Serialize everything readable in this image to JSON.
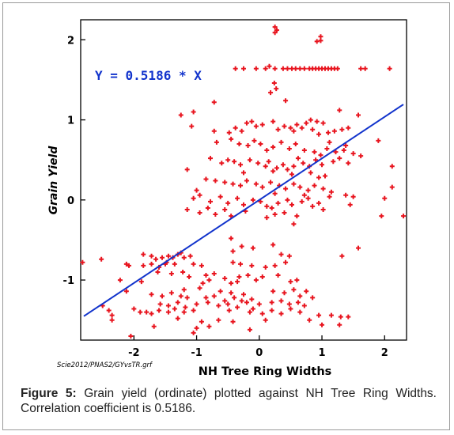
{
  "chart_data": {
    "type": "scatter",
    "xlabel": "NH Tree Ring Widths",
    "ylabel": "Grain Yield",
    "xlim": [
      -2.85,
      2.35
    ],
    "ylim": [
      -1.75,
      2.25
    ],
    "x_ticks": [
      -2,
      -1,
      0,
      1,
      2
    ],
    "y_ticks": [
      -1,
      0,
      1,
      2
    ],
    "x_tick_labels": [
      "-2",
      "-1",
      "0",
      "1",
      "2"
    ],
    "y_tick_labels": [
      "-1",
      "0",
      "1",
      "2"
    ],
    "equation_label": "Y = 0.5186 * X",
    "source_label": "Scie2012/PNAS2/GYvsTR.grf",
    "fit_line": {
      "slope": 0.5186,
      "intercept": 0,
      "x_range": [
        -2.8,
        2.3
      ]
    },
    "grid": false,
    "colors": {
      "points": "#e8141e",
      "fit_line": "#1133cc",
      "equation": "#1133cc",
      "axes": "#000000"
    },
    "points": [
      [
        0.25,
        2.16
      ],
      [
        0.25,
        2.09
      ],
      [
        0.28,
        2.12
      ],
      [
        0.98,
        2.04
      ],
      [
        0.92,
        1.98
      ],
      [
        0.98,
        1.99
      ],
      [
        -0.38,
        1.64
      ],
      [
        -0.25,
        1.64
      ],
      [
        -0.05,
        1.64
      ],
      [
        0.1,
        1.64
      ],
      [
        0.16,
        1.67
      ],
      [
        0.25,
        1.64
      ],
      [
        0.38,
        1.64
      ],
      [
        0.45,
        1.64
      ],
      [
        0.52,
        1.64
      ],
      [
        0.58,
        1.64
      ],
      [
        0.65,
        1.64
      ],
      [
        0.72,
        1.64
      ],
      [
        0.8,
        1.64
      ],
      [
        0.85,
        1.64
      ],
      [
        0.9,
        1.64
      ],
      [
        0.95,
        1.64
      ],
      [
        1.0,
        1.64
      ],
      [
        1.05,
        1.64
      ],
      [
        1.1,
        1.64
      ],
      [
        1.15,
        1.64
      ],
      [
        1.2,
        1.64
      ],
      [
        1.25,
        1.64
      ],
      [
        1.62,
        1.64
      ],
      [
        1.69,
        1.64
      ],
      [
        2.08,
        1.64
      ],
      [
        0.24,
        1.46
      ],
      [
        0.27,
        1.39
      ],
      [
        0.18,
        1.34
      ],
      [
        -0.72,
        1.22
      ],
      [
        -1.25,
        1.06
      ],
      [
        0.42,
        1.24
      ],
      [
        -1.05,
        1.1
      ],
      [
        1.28,
        1.12
      ],
      [
        1.58,
        1.06
      ],
      [
        0.82,
        1.0
      ],
      [
        0.92,
        0.98
      ],
      [
        1.02,
        0.96
      ],
      [
        -1.08,
        0.92
      ],
      [
        -0.72,
        0.86
      ],
      [
        -0.48,
        0.84
      ],
      [
        -0.38,
        0.9
      ],
      [
        -0.28,
        0.86
      ],
      [
        -0.2,
        0.96
      ],
      [
        -0.12,
        0.98
      ],
      [
        -0.05,
        0.92
      ],
      [
        0.05,
        0.94
      ],
      [
        0.22,
        0.98
      ],
      [
        0.3,
        0.88
      ],
      [
        0.4,
        0.92
      ],
      [
        0.5,
        0.9
      ],
      [
        0.55,
        0.86
      ],
      [
        0.6,
        0.94
      ],
      [
        0.68,
        0.9
      ],
      [
        0.75,
        0.96
      ],
      [
        0.85,
        0.88
      ],
      [
        0.95,
        0.82
      ],
      [
        1.1,
        0.84
      ],
      [
        1.2,
        0.86
      ],
      [
        1.32,
        0.88
      ],
      [
        1.42,
        0.9
      ],
      [
        1.9,
        0.74
      ],
      [
        -0.68,
        0.72
      ],
      [
        -0.45,
        0.76
      ],
      [
        -0.32,
        0.7
      ],
      [
        -0.18,
        0.68
      ],
      [
        -0.08,
        0.74
      ],
      [
        0.02,
        0.7
      ],
      [
        0.12,
        0.62
      ],
      [
        0.22,
        0.66
      ],
      [
        0.35,
        0.72
      ],
      [
        0.48,
        0.64
      ],
      [
        0.58,
        0.7
      ],
      [
        0.72,
        0.62
      ],
      [
        0.88,
        0.6
      ],
      [
        0.98,
        0.56
      ],
      [
        1.08,
        0.64
      ],
      [
        1.22,
        0.6
      ],
      [
        1.35,
        0.62
      ],
      [
        1.5,
        0.58
      ],
      [
        1.62,
        0.55
      ],
      [
        1.38,
        0.68
      ],
      [
        1.12,
        0.72
      ],
      [
        -0.78,
        0.52
      ],
      [
        -0.6,
        0.46
      ],
      [
        -0.5,
        0.5
      ],
      [
        -0.4,
        0.48
      ],
      [
        -0.3,
        0.44
      ],
      [
        -0.15,
        0.5
      ],
      [
        -0.02,
        0.46
      ],
      [
        0.1,
        0.42
      ],
      [
        0.15,
        0.48
      ],
      [
        0.28,
        0.4
      ],
      [
        0.38,
        0.44
      ],
      [
        0.45,
        0.38
      ],
      [
        0.55,
        0.42
      ],
      [
        0.62,
        0.52
      ],
      [
        0.7,
        0.46
      ],
      [
        0.8,
        0.42
      ],
      [
        0.9,
        0.5
      ],
      [
        1.0,
        0.44
      ],
      [
        1.18,
        0.48
      ],
      [
        1.28,
        0.52
      ],
      [
        1.42,
        0.46
      ],
      [
        2.12,
        0.42
      ],
      [
        -1.15,
        0.38
      ],
      [
        -0.25,
        0.34
      ],
      [
        0.22,
        0.36
      ],
      [
        0.52,
        0.32
      ],
      [
        0.82,
        0.34
      ],
      [
        0.95,
        0.28
      ],
      [
        1.05,
        0.3
      ],
      [
        -0.85,
        0.26
      ],
      [
        -0.7,
        0.24
      ],
      [
        -0.55,
        0.22
      ],
      [
        -0.42,
        0.2
      ],
      [
        -0.3,
        0.18
      ],
      [
        -0.2,
        0.24
      ],
      [
        -0.05,
        0.2
      ],
      [
        0.05,
        0.16
      ],
      [
        0.18,
        0.22
      ],
      [
        0.32,
        0.18
      ],
      [
        0.42,
        0.14
      ],
      [
        0.55,
        0.2
      ],
      [
        0.65,
        0.16
      ],
      [
        0.78,
        0.12
      ],
      [
        0.88,
        0.18
      ],
      [
        1.02,
        0.14
      ],
      [
        1.15,
        0.1
      ],
      [
        2.12,
        0.16
      ],
      [
        -1.0,
        0.12
      ],
      [
        0.25,
        0.08
      ],
      [
        0.72,
        0.06
      ],
      [
        -1.05,
        0.02
      ],
      [
        -0.95,
        0.06
      ],
      [
        -0.78,
        -0.02
      ],
      [
        -0.62,
        0.04
      ],
      [
        -0.5,
        -0.04
      ],
      [
        -0.35,
        0.02
      ],
      [
        -0.25,
        -0.06
      ],
      [
        -0.1,
        0.0
      ],
      [
        0.02,
        -0.02
      ],
      [
        0.12,
        -0.08
      ],
      [
        0.3,
        -0.04
      ],
      [
        0.45,
        0.0
      ],
      [
        0.52,
        -0.06
      ],
      [
        0.68,
        -0.02
      ],
      [
        0.78,
        0.02
      ],
      [
        0.95,
        -0.04
      ],
      [
        1.12,
        0.04
      ],
      [
        1.38,
        0.06
      ],
      [
        1.5,
        0.04
      ],
      [
        2.0,
        0.02
      ],
      [
        -0.55,
        -0.12
      ],
      [
        0.2,
        -0.1
      ],
      [
        0.85,
        -0.08
      ],
      [
        -1.15,
        -0.12
      ],
      [
        -0.95,
        -0.16
      ],
      [
        -0.82,
        -0.1
      ],
      [
        -0.7,
        -0.18
      ],
      [
        -0.45,
        -0.2
      ],
      [
        -0.22,
        -0.14
      ],
      [
        0.12,
        -0.22
      ],
      [
        0.25,
        -0.18
      ],
      [
        0.4,
        -0.16
      ],
      [
        0.6,
        -0.2
      ],
      [
        1.02,
        -0.12
      ],
      [
        1.45,
        -0.06
      ],
      [
        1.95,
        -0.2
      ],
      [
        2.3,
        -0.2
      ],
      [
        0.55,
        -0.3
      ],
      [
        -0.45,
        -0.48
      ],
      [
        -0.28,
        -0.58
      ],
      [
        -0.1,
        -0.6
      ],
      [
        -0.42,
        -0.64
      ],
      [
        0.22,
        -0.56
      ],
      [
        0.35,
        -0.68
      ],
      [
        0.48,
        -0.7
      ],
      [
        1.32,
        -0.7
      ],
      [
        1.58,
        -0.6
      ],
      [
        -2.82,
        -0.78
      ],
      [
        -2.52,
        -0.74
      ],
      [
        -1.72,
        -0.7
      ],
      [
        -1.65,
        -0.74
      ],
      [
        -1.55,
        -0.72
      ],
      [
        -1.45,
        -0.7
      ],
      [
        -1.38,
        -0.72
      ],
      [
        -1.3,
        -0.68
      ],
      [
        -1.25,
        -0.66
      ],
      [
        -1.2,
        -0.72
      ],
      [
        -1.1,
        -0.7
      ],
      [
        -1.85,
        -0.68
      ],
      [
        -1.48,
        -0.78
      ],
      [
        -2.08,
        -0.82
      ],
      [
        -2.12,
        -0.8
      ],
      [
        -1.85,
        -0.82
      ],
      [
        -1.72,
        -0.8
      ],
      [
        -1.6,
        -0.84
      ],
      [
        -1.5,
        -0.8
      ],
      [
        -1.35,
        -0.8
      ],
      [
        -1.05,
        -0.8
      ],
      [
        -0.92,
        -0.82
      ],
      [
        -0.42,
        -0.78
      ],
      [
        -0.3,
        -0.8
      ],
      [
        -0.12,
        -0.82
      ],
      [
        0.1,
        -0.84
      ],
      [
        0.25,
        -0.82
      ],
      [
        0.42,
        -0.78
      ],
      [
        -1.62,
        -0.9
      ],
      [
        -1.4,
        -0.92
      ],
      [
        -1.22,
        -0.9
      ],
      [
        -1.12,
        -0.96
      ],
      [
        -0.85,
        -0.94
      ],
      [
        -0.72,
        -0.92
      ],
      [
        -0.55,
        -0.98
      ],
      [
        -0.32,
        -0.96
      ],
      [
        -0.18,
        -0.94
      ],
      [
        0.05,
        -0.96
      ],
      [
        0.3,
        -0.94
      ],
      [
        -2.22,
        -1.0
      ],
      [
        -1.88,
        -1.02
      ],
      [
        -0.9,
        -1.04
      ],
      [
        -0.8,
        -1.0
      ],
      [
        -0.45,
        -1.04
      ],
      [
        -0.35,
        -1.02
      ],
      [
        -0.05,
        -1.0
      ],
      [
        0.5,
        -1.02
      ],
      [
        0.6,
        -1.0
      ],
      [
        -1.2,
        -1.12
      ],
      [
        -0.95,
        -1.1
      ],
      [
        -0.62,
        -1.14
      ],
      [
        -0.45,
        -1.16
      ],
      [
        -0.25,
        -1.18
      ],
      [
        -2.12,
        -1.14
      ],
      [
        -1.72,
        -1.18
      ],
      [
        -1.55,
        -1.2
      ],
      [
        -1.4,
        -1.16
      ],
      [
        -1.25,
        -1.2
      ],
      [
        -1.15,
        -1.22
      ],
      [
        -0.85,
        -1.22
      ],
      [
        -0.72,
        -1.2
      ],
      [
        -0.55,
        -1.26
      ],
      [
        -0.4,
        -1.22
      ],
      [
        -0.28,
        -1.26
      ],
      [
        -0.12,
        -1.24
      ],
      [
        0.22,
        -1.14
      ],
      [
        0.4,
        -1.16
      ],
      [
        0.55,
        -1.12
      ],
      [
        0.65,
        -1.2
      ],
      [
        0.75,
        -1.14
      ],
      [
        0.85,
        -1.22
      ],
      [
        -1.58,
        -1.3
      ],
      [
        -1.45,
        -1.32
      ],
      [
        -1.3,
        -1.28
      ],
      [
        -1.18,
        -1.34
      ],
      [
        -1.0,
        -1.3
      ],
      [
        -0.82,
        -1.28
      ],
      [
        -0.65,
        -1.32
      ],
      [
        -0.5,
        -1.3
      ],
      [
        -0.35,
        -1.34
      ],
      [
        -0.2,
        -1.28
      ],
      [
        0.0,
        -1.3
      ],
      [
        0.2,
        -1.28
      ],
      [
        0.35,
        -1.26
      ],
      [
        0.48,
        -1.3
      ],
      [
        0.62,
        -1.28
      ],
      [
        0.72,
        -1.32
      ],
      [
        -2.5,
        -1.32
      ],
      [
        -2.4,
        -1.38
      ],
      [
        -2.0,
        -1.36
      ],
      [
        -1.9,
        -1.4
      ],
      [
        -1.8,
        -1.4
      ],
      [
        -1.72,
        -1.42
      ],
      [
        -1.6,
        -1.38
      ],
      [
        -1.45,
        -1.4
      ],
      [
        -1.35,
        -1.36
      ],
      [
        -1.2,
        -1.4
      ],
      [
        -1.05,
        -1.38
      ],
      [
        -0.48,
        -1.38
      ],
      [
        -0.15,
        -1.4
      ],
      [
        -0.1,
        -1.36
      ],
      [
        0.05,
        -1.42
      ],
      [
        0.2,
        -1.38
      ],
      [
        0.35,
        -1.42
      ],
      [
        0.5,
        -1.36
      ],
      [
        0.65,
        -1.4
      ],
      [
        0.95,
        -1.44
      ],
      [
        1.15,
        -1.44
      ],
      [
        1.3,
        -1.46
      ],
      [
        1.42,
        -1.46
      ],
      [
        -2.35,
        -1.5
      ],
      [
        -1.3,
        -1.48
      ],
      [
        -0.92,
        -1.52
      ],
      [
        -0.65,
        -1.5
      ],
      [
        -0.42,
        -1.52
      ],
      [
        0.1,
        -1.5
      ],
      [
        0.8,
        -1.5
      ],
      [
        1.0,
        -1.56
      ],
      [
        -2.35,
        -1.44
      ],
      [
        -0.8,
        -1.58
      ],
      [
        -1.0,
        -1.6
      ],
      [
        -0.15,
        -1.62
      ],
      [
        1.28,
        -1.56
      ],
      [
        -2.05,
        -1.7
      ],
      [
        -1.68,
        -1.58
      ],
      [
        -1.05,
        -1.66
      ]
    ]
  },
  "caption": {
    "label": "Figure 5:",
    "text": " Grain yield (ordinate) plotted against NH Tree Ring Widths. Correlation coefficient is 0.5186."
  }
}
